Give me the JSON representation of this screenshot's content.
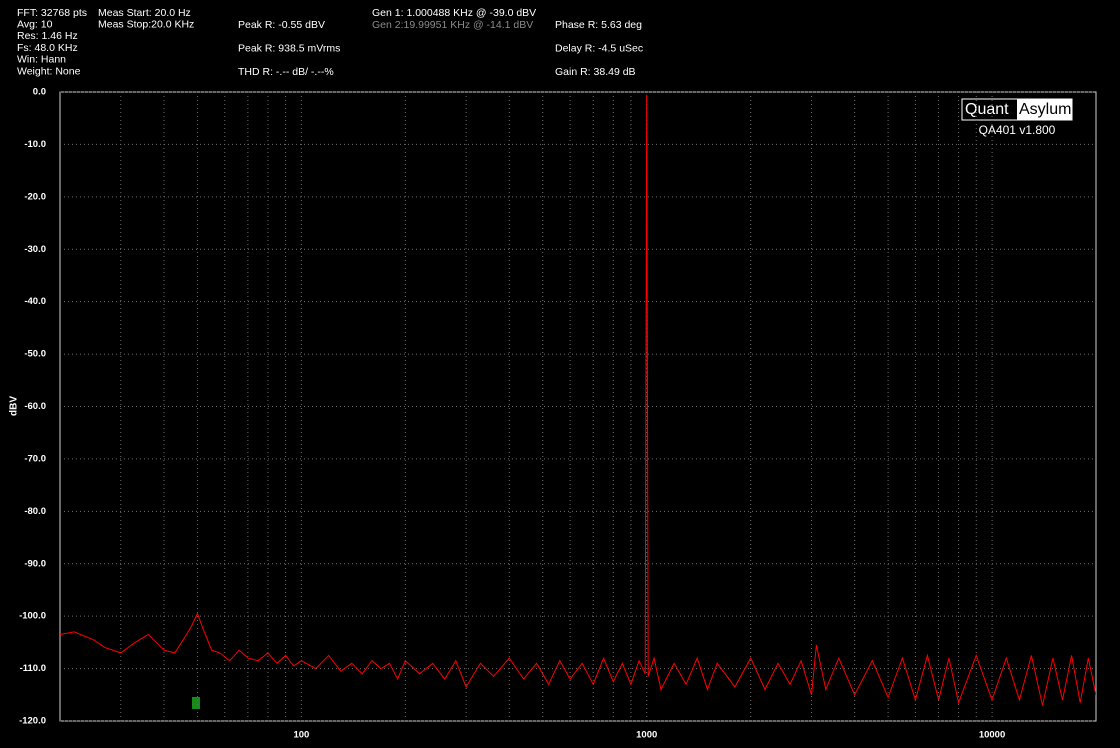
{
  "header": {
    "settings": [
      "FFT: 32768 pts",
      "Avg: 10",
      "Res: 1.46 Hz",
      "Fs: 48.0 KHz",
      "Win: Hann",
      "Weight: None"
    ],
    "measurement": [
      "Meas Start: 20.0 Hz",
      "Meas Stop:20.0 KHz"
    ],
    "peak_thd": [
      "Peak R: -0.55 dBV",
      "Peak R: 938.5 mVrms",
      "THD R: -.-- dB/ -.--%"
    ],
    "generators": [
      "Gen 1: 1.000488 KHz @ -39.0  dBV",
      "Gen 2:19.99951 KHz @ -14.1  dBV"
    ],
    "phase_delay_gain": [
      "Phase R: 5.63 deg",
      "Delay R: -4.5 uSec",
      "Gain R: 38.49 dB"
    ],
    "logo": {
      "left": "Quant",
      "right": "Asylum",
      "version": "QA401 v1.800"
    }
  },
  "chart_data": {
    "type": "line",
    "ylabel": "dBV",
    "xscale": "log",
    "grid": true,
    "color": "#ff0000",
    "xlim": [
      20,
      20000
    ],
    "ylim": [
      -120,
      0
    ],
    "xticks": [
      100,
      1000,
      10000
    ],
    "xminorticks": [
      30,
      40,
      50,
      60,
      70,
      80,
      90,
      200,
      300,
      400,
      500,
      600,
      700,
      800,
      900,
      2000,
      3000,
      4000,
      5000,
      6000,
      7000,
      8000,
      9000
    ],
    "yticks": [
      {
        "value": 0,
        "label": "0.0"
      },
      {
        "value": -10,
        "label": "-10.0"
      },
      {
        "value": -20,
        "label": "-20.0"
      },
      {
        "value": -30,
        "label": "-30.0"
      },
      {
        "value": -40,
        "label": "-40.0"
      },
      {
        "value": -50,
        "label": "-50.0"
      },
      {
        "value": -60,
        "label": "-60.0"
      },
      {
        "value": -70,
        "label": "-70.0"
      },
      {
        "value": -80,
        "label": "-80.0"
      },
      {
        "value": -90,
        "label": "-90.0"
      },
      {
        "value": -100,
        "label": "-100.0"
      },
      {
        "value": -110,
        "label": "-110.0"
      },
      {
        "value": -120,
        "label": "-120.0"
      }
    ],
    "x": [
      20,
      22,
      25,
      27,
      30,
      33,
      36,
      40,
      43,
      46,
      48,
      50,
      52,
      55,
      58,
      62,
      66,
      70,
      75,
      80,
      85,
      90,
      95,
      100,
      110,
      120,
      130,
      140,
      150,
      160,
      170,
      180,
      190,
      200,
      220,
      240,
      260,
      280,
      300,
      330,
      360,
      400,
      440,
      480,
      520,
      560,
      600,
      650,
      700,
      750,
      800,
      850,
      900,
      950,
      990,
      1000,
      1010,
      1050,
      1100,
      1200,
      1300,
      1400,
      1500,
      1600,
      1800,
      2000,
      2200,
      2400,
      2600,
      2800,
      3000,
      3100,
      3300,
      3600,
      4000,
      4500,
      5000,
      5500,
      6000,
      6500,
      7000,
      7500,
      8000,
      9000,
      10000,
      11000,
      12000,
      13000,
      14000,
      15000,
      16000,
      17000,
      18000,
      19000,
      20000
    ],
    "values": [
      -103.5,
      -103,
      -104.5,
      -106,
      -107,
      -105,
      -103.5,
      -106.5,
      -107,
      -104,
      -102,
      -99.5,
      -102.5,
      -106.5,
      -107,
      -108.5,
      -106.5,
      -108,
      -108.5,
      -107,
      -109,
      -107.5,
      -109.5,
      -108.5,
      -110,
      -107.5,
      -110.5,
      -109,
      -111,
      -108.5,
      -110,
      -109,
      -112,
      -108.5,
      -111,
      -109,
      -112,
      -108.5,
      -113.5,
      -109,
      -111.5,
      -108,
      -112,
      -109,
      -113,
      -108.5,
      -112,
      -109,
      -113,
      -108,
      -112.5,
      -109,
      -113,
      -108.5,
      -111,
      -0.55,
      -111.5,
      -108,
      -114,
      -109,
      -113,
      -108,
      -114,
      -109,
      -113.5,
      -108,
      -114,
      -109,
      -113,
      -108.5,
      -115,
      -105.5,
      -114,
      -108,
      -115,
      -108.5,
      -115.5,
      -108,
      -116,
      -107.5,
      -116,
      -108,
      -116.5,
      -107.5,
      -116,
      -108,
      -116,
      -107.5,
      -117,
      -108,
      -116,
      -107.5,
      -116.5,
      -108,
      -115
    ]
  }
}
